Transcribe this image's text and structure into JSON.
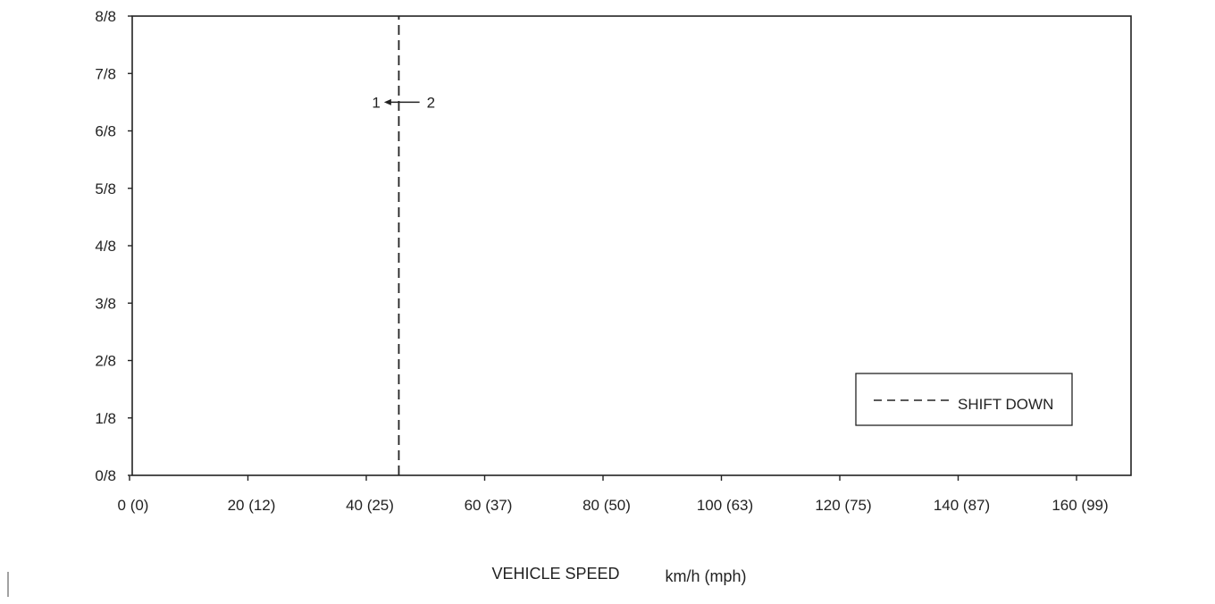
{
  "chart_data": {
    "type": "line",
    "title": "",
    "xlabel": "VEHICLE SPEED",
    "xunit": "km/h (mph)",
    "ylabel": "",
    "x_ticks": [
      "0 (0)",
      "20 (12)",
      "40 (25)",
      "60 (37)",
      "80 (50)",
      "100 (63)",
      "120 (75)",
      "140 (87)",
      "160 (99)"
    ],
    "x_tick_values": [
      0,
      20,
      40,
      60,
      80,
      100,
      120,
      140,
      160
    ],
    "y_ticks": [
      "0/8",
      "1/8",
      "2/8",
      "3/8",
      "4/8",
      "5/8",
      "6/8",
      "7/8",
      "8/8"
    ],
    "y_tick_values": [
      0,
      1,
      2,
      3,
      4,
      5,
      6,
      7,
      8
    ],
    "xlim": [
      0,
      170
    ],
    "ylim": [
      0,
      8
    ],
    "grid": false,
    "legend_position": "bottom-right",
    "series": [
      {
        "name": "SHIFT DOWN",
        "style": "dashed",
        "color": "#222222",
        "x": [
          45.5,
          45.5
        ],
        "y": [
          0,
          8
        ]
      }
    ],
    "annotations": [
      {
        "from_label": "1",
        "to_label": "2",
        "direction": "2 to 1",
        "y": 6.5,
        "x_from": 49,
        "x_to": 43
      }
    ]
  }
}
